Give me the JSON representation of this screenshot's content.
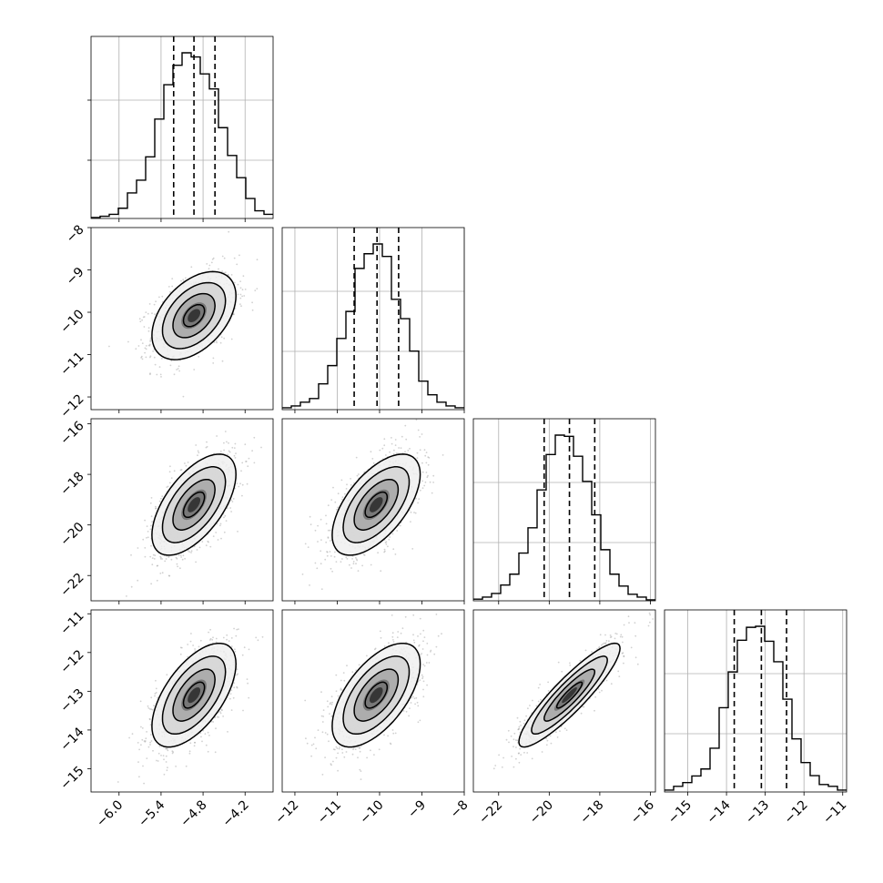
{
  "chart_data": {
    "type": "corner",
    "parameters": 4,
    "grid": true,
    "axis_labels": [
      "",
      "",
      "",
      ""
    ],
    "diagonal": [
      {
        "param": 0,
        "range": [
          -6.4,
          -3.8
        ],
        "ticks": [
          "-6.0",
          "-5.4",
          "-4.8",
          "-4.2"
        ],
        "quantiles": [
          -5.22,
          -4.93,
          -4.63
        ],
        "bin_edges": [
          -6.4,
          -6.27,
          -6.14,
          -6.01,
          -5.88,
          -5.75,
          -5.62,
          -5.49,
          -5.36,
          -5.23,
          -5.1,
          -4.97,
          -4.84,
          -4.71,
          -4.58,
          -4.45,
          -4.32,
          -4.19,
          -4.06,
          -3.93,
          -3.8
        ],
        "counts": [
          0.006,
          0.013,
          0.025,
          0.061,
          0.152,
          0.228,
          0.367,
          0.592,
          0.797,
          0.913,
          0.987,
          0.962,
          0.861,
          0.772,
          0.541,
          0.375,
          0.243,
          0.119,
          0.046,
          0.025
        ]
      },
      {
        "param": 1,
        "range": [
          -12.3,
          -8.0
        ],
        "ticks": [
          "-12",
          "-11",
          "-10",
          "-9",
          "-8"
        ],
        "quantiles": [
          -10.6,
          -10.06,
          -9.55
        ],
        "bin_edges": [
          -12.3,
          -12.085,
          -11.87,
          -11.655,
          -11.44,
          -11.225,
          -11.01,
          -10.795,
          -10.58,
          -10.365,
          -10.15,
          -9.935,
          -9.72,
          -9.505,
          -9.29,
          -9.075,
          -8.86,
          -8.645,
          -8.43,
          -8.215,
          -8.0
        ],
        "counts": [
          0.011,
          0.022,
          0.044,
          0.066,
          0.153,
          0.261,
          0.422,
          0.582,
          0.837,
          0.924,
          0.982,
          0.908,
          0.654,
          0.539,
          0.347,
          0.169,
          0.088,
          0.044,
          0.022,
          0.011
        ]
      },
      {
        "param": 2,
        "range": [
          -23.0,
          -15.8
        ],
        "ticks": [
          "-22",
          "-20",
          "-18",
          "-16"
        ],
        "quantiles": [
          -20.2,
          -19.2,
          -18.2
        ],
        "bin_edges": [
          -23.0,
          -22.64,
          -22.28,
          -21.92,
          -21.56,
          -21.2,
          -20.84,
          -20.48,
          -20.12,
          -19.76,
          -19.4,
          -19.04,
          -18.68,
          -18.32,
          -17.96,
          -17.6,
          -17.24,
          -16.88,
          -16.52,
          -16.16,
          -15.8
        ],
        "counts": [
          0.01,
          0.022,
          0.044,
          0.094,
          0.159,
          0.285,
          0.436,
          0.662,
          0.873,
          0.989,
          0.982,
          0.863,
          0.713,
          0.513,
          0.305,
          0.159,
          0.088,
          0.039,
          0.022,
          0.006
        ]
      },
      {
        "param": 3,
        "range": [
          -15.6,
          -10.9
        ],
        "ticks": [
          "-15",
          "-14",
          "-13",
          "-12",
          "-11"
        ],
        "quantiles": [
          -13.8,
          -13.1,
          -12.45
        ],
        "bin_edges": [
          -15.6,
          -15.365,
          -15.13,
          -14.895,
          -14.66,
          -14.425,
          -14.19,
          -13.955,
          -13.72,
          -13.485,
          -13.25,
          -13.015,
          -12.78,
          -12.545,
          -12.31,
          -12.075,
          -11.84,
          -11.605,
          -11.37,
          -11.135,
          -10.9
        ],
        "counts": [
          0.011,
          0.033,
          0.055,
          0.094,
          0.135,
          0.257,
          0.495,
          0.705,
          0.891,
          0.967,
          0.973,
          0.885,
          0.765,
          0.545,
          0.312,
          0.173,
          0.096,
          0.044,
          0.033,
          0.011
        ]
      }
    ],
    "pairs": [
      {
        "x_param": 0,
        "y_param": 1,
        "x_mean": -4.93,
        "y_mean": -10.08,
        "x_sd": 0.3,
        "y_sd": 0.52,
        "corr": 0.45
      },
      {
        "x_param": 0,
        "y_param": 2,
        "x_mean": -4.93,
        "y_mean": -19.2,
        "x_sd": 0.3,
        "y_sd": 1.0,
        "corr": 0.6
      },
      {
        "x_param": 1,
        "y_param": 2,
        "x_mean": -10.08,
        "y_mean": -19.2,
        "x_sd": 0.52,
        "y_sd": 1.0,
        "corr": 0.6
      },
      {
        "x_param": 0,
        "y_param": 3,
        "x_mean": -4.93,
        "y_mean": -13.1,
        "x_sd": 0.3,
        "y_sd": 0.67,
        "corr": 0.6
      },
      {
        "x_param": 1,
        "y_param": 3,
        "x_mean": -10.08,
        "y_mean": -13.1,
        "x_sd": 0.52,
        "y_sd": 0.67,
        "corr": 0.6
      },
      {
        "x_param": 2,
        "y_param": 3,
        "x_mean": -19.2,
        "y_mean": -13.1,
        "x_sd": 1.0,
        "y_sd": 0.67,
        "corr": 0.9
      }
    ],
    "contour_levels_sigma": [
      0.5,
      1.0,
      1.5,
      2.0
    ],
    "colors": {
      "histogram": "#000000",
      "quantile_line": "#000000",
      "grid": "#b0b0b0",
      "points": "#9a9a9a",
      "contour": "#000000",
      "frame": "#000000"
    }
  }
}
